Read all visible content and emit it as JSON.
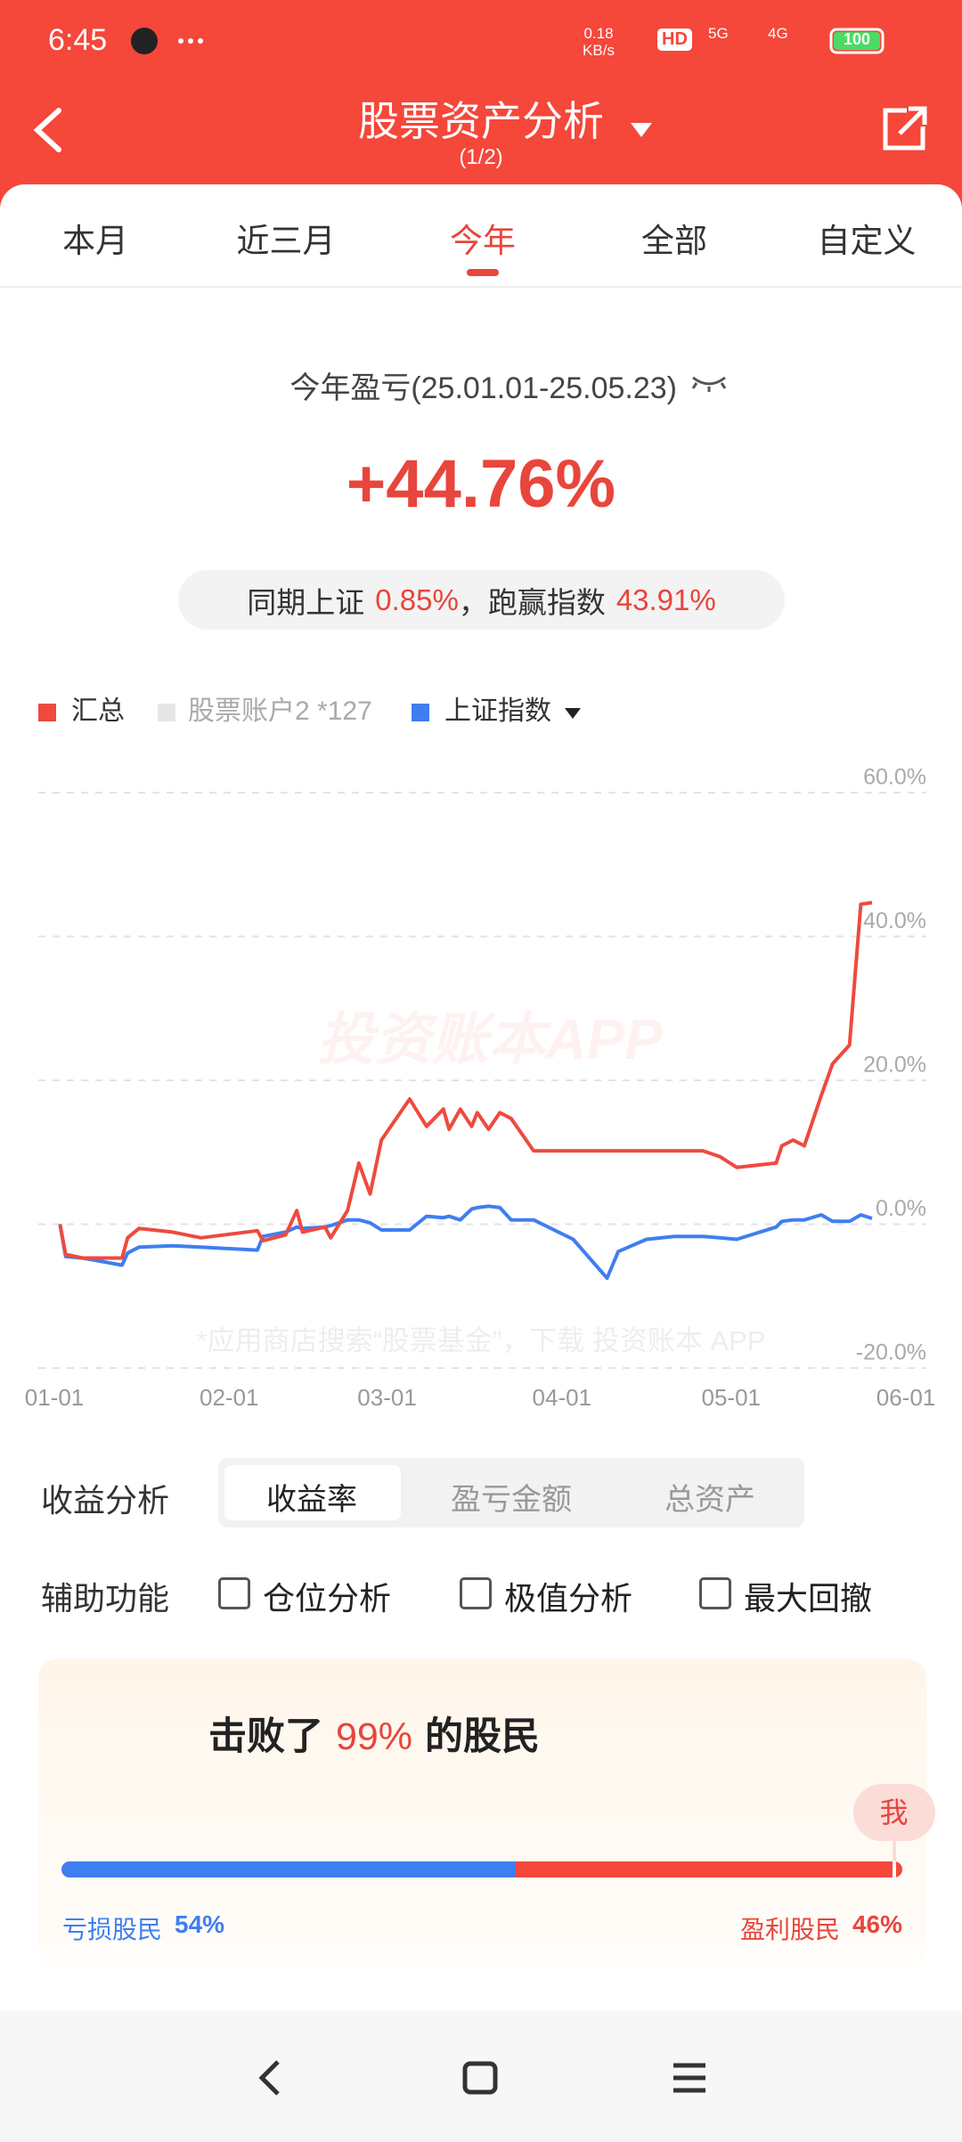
{
  "status_bar": {
    "time": "6:45",
    "speed": "0.18",
    "speed_unit": "KB/s",
    "hd": "HD",
    "net1": "5G",
    "net2": "4G",
    "battery": "100"
  },
  "header": {
    "title": "股票资产分析",
    "subtitle": "(1/2)"
  },
  "tabs": [
    "本月",
    "近三月",
    "今年",
    "全部",
    "自定义"
  ],
  "active_tab": 2,
  "summary": {
    "label": "今年盈亏(25.01.01-25.05.23)",
    "value": "+44.76%",
    "compare_prefix": "同期上证",
    "index_value": "0.85%",
    "beat_label": "，跑赢指数",
    "beat_value": "43.91%"
  },
  "chart_data": {
    "type": "line",
    "x": [
      1,
      2,
      5,
      12,
      13,
      15,
      21,
      26,
      36,
      37,
      41,
      43,
      44,
      48,
      49,
      52,
      54,
      56,
      58,
      63,
      66,
      69,
      70,
      72,
      74,
      75,
      77,
      79,
      81,
      85,
      92,
      98,
      100,
      105,
      110,
      115,
      118,
      121,
      128,
      129,
      131,
      133,
      136,
      138,
      141,
      143,
      145
    ],
    "series": [
      {
        "name": "汇总",
        "color": "#ee4a3f",
        "values": [
          0,
          -4.2,
          -4.7,
          -4.7,
          -1.9,
          -0.6,
          -1.1,
          -1.9,
          -0.9,
          -2.3,
          -1.5,
          1.9,
          -1.1,
          -0.4,
          -1.9,
          1.9,
          8.5,
          4.2,
          11.7,
          17.4,
          13.6,
          16,
          13.2,
          16,
          13.6,
          15.5,
          13.2,
          15.5,
          14.7,
          10.2,
          10.2,
          10.2,
          10.2,
          10.2,
          10.2,
          10.2,
          9.4,
          7.9,
          8.5,
          10.9,
          11.7,
          10.9,
          17.9,
          22.3,
          24.9,
          44.5,
          44.7
        ]
      },
      {
        "name": "股票账户2 *127",
        "color": "#e6e6e6",
        "hidden": true
      },
      {
        "name": "上证指数",
        "color": "#3f7ef0",
        "values": [
          0,
          -4.5,
          -4.7,
          -5.7,
          -4.0,
          -3.2,
          -3.0,
          -3.2,
          -3.6,
          -1.7,
          -1.1,
          -0.4,
          -0.6,
          -0.4,
          -0.2,
          0.6,
          0.6,
          0.2,
          -0.8,
          -0.8,
          1.1,
          0.9,
          1.1,
          0.6,
          2.1,
          2.3,
          2.5,
          2.3,
          0.6,
          0.6,
          -2.1,
          -7.5,
          -3.8,
          -2.1,
          -1.7,
          -1.7,
          -1.9,
          -2.1,
          -0.4,
          0.4,
          0.6,
          0.6,
          1.3,
          0.4,
          0.4,
          1.3,
          0.8
        ]
      }
    ],
    "xlim": [
      0,
      151
    ],
    "xticks": [
      {
        "value": 0,
        "label": "01-01"
      },
      {
        "value": 31,
        "label": "02-01"
      },
      {
        "value": 59,
        "label": "03-01"
      },
      {
        "value": 90,
        "label": "04-01"
      },
      {
        "value": 120,
        "label": "05-01"
      },
      {
        "value": 151,
        "label": "06-01"
      }
    ],
    "ylim": [
      -20,
      60
    ],
    "yticks": [
      {
        "value": 60,
        "label": "60.0%"
      },
      {
        "value": 40,
        "label": "40.0%"
      },
      {
        "value": 20,
        "label": "20.0%"
      },
      {
        "value": 0,
        "label": "0.0%"
      },
      {
        "value": -20,
        "label": "-20.0%"
      }
    ],
    "grid": true
  },
  "watermark": {
    "center": "投资账本APP",
    "bottom": "*应用商店搜索“股票基金”，下载 投资账本 APP"
  },
  "analysis": {
    "label": "收益分析",
    "options": [
      "收益率",
      "盈亏金额",
      "总资产"
    ],
    "active_option": 0
  },
  "tools": {
    "label": "辅助功能",
    "items": [
      "仓位分析",
      "极值分析",
      "最大回撤"
    ],
    "checked": [
      false,
      false,
      false
    ]
  },
  "rank": {
    "prefix": "击败了",
    "beat": {
      "value": 99,
      "label": "99%"
    },
    "suffix": "的股民",
    "me": "我",
    "loss": {
      "label": "亏损股民",
      "value": 54,
      "value_label": "54%"
    },
    "profit": {
      "label": "盈利股民",
      "value": 46,
      "value_label": "46%"
    }
  }
}
